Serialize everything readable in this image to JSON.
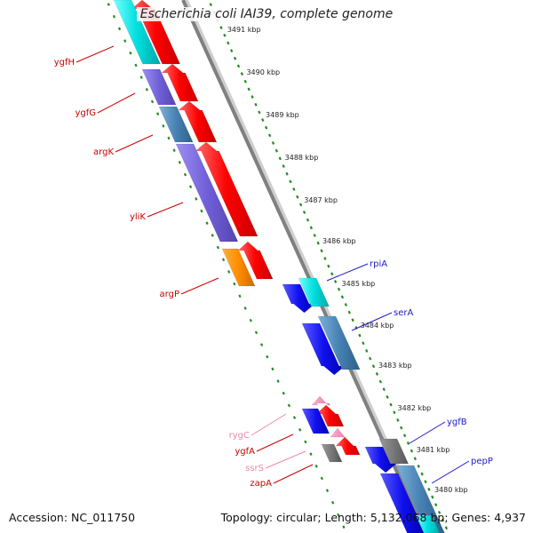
{
  "title": "Escherichia coli IAI39, complete genome",
  "accession_text": "Accession: NC_011750",
  "stats_text": "Topology: circular; Length: 5,132,068 bp; Genes: 4,937",
  "colors": {
    "backbone": "#888888",
    "tick": "#228b22",
    "label_red": "#cc0000",
    "label_blue": "#1a1acc",
    "label_pink": "#ee88aa"
  },
  "scale": {
    "unit": "kbp",
    "ticks": [
      3491,
      3490,
      3489,
      3488,
      3487,
      3486,
      3485,
      3484,
      3483,
      3482,
      3481,
      3480
    ]
  },
  "genes": [
    {
      "name": "ygfH",
      "strand": "reverse",
      "color": "red"
    },
    {
      "name": "ygfG",
      "strand": "reverse",
      "color": "red"
    },
    {
      "name": "argK",
      "strand": "reverse",
      "color": "red"
    },
    {
      "name": "yliK",
      "strand": "reverse",
      "color": "red"
    },
    {
      "name": "argP",
      "strand": "reverse",
      "color": "red"
    },
    {
      "name": "rpiA",
      "strand": "forward",
      "color": "blue"
    },
    {
      "name": "serA",
      "strand": "forward",
      "color": "blue"
    },
    {
      "name": "rygC",
      "strand": "reverse",
      "color": "pink"
    },
    {
      "name": "ygfA",
      "strand": "reverse",
      "color": "red"
    },
    {
      "name": "ssrS",
      "strand": "reverse",
      "color": "pink"
    },
    {
      "name": "zapA",
      "strand": "reverse",
      "color": "red"
    },
    {
      "name": "ygfB",
      "strand": "forward",
      "color": "blue"
    },
    {
      "name": "pepP",
      "strand": "forward",
      "color": "blue"
    }
  ]
}
